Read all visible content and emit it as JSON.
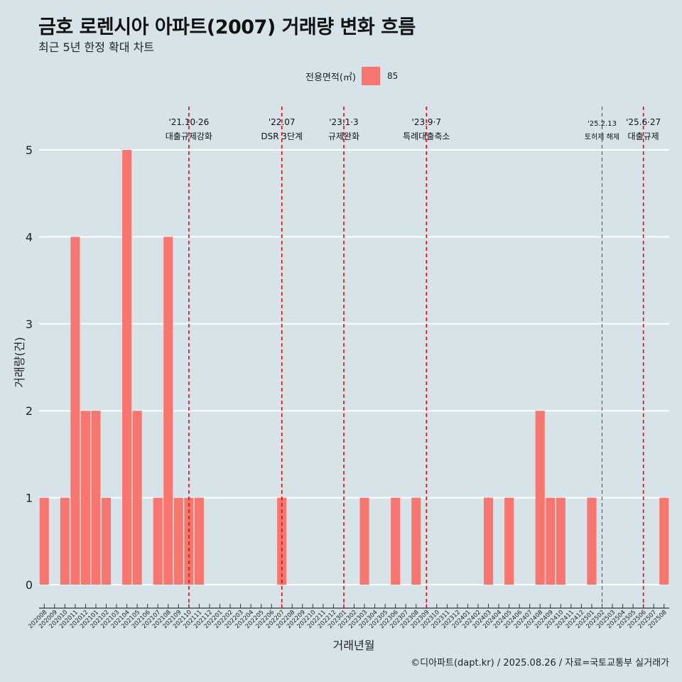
{
  "title": "금호 로렌시아 아파트(2007) 거래량 변화 흐름",
  "subtitle": "최근 5년 한정 확대 차트",
  "legend": {
    "title": "전용면적(㎡)",
    "item": "85",
    "color": "#f8766d"
  },
  "caption": "©디아파트(dapt.kr) / 2025.08.26 / 자료=국토교통부 실거래가",
  "chart_data": {
    "type": "bar",
    "xlabel": "거래년월",
    "ylabel": "거래량(건)",
    "ylim": [
      0,
      5
    ],
    "yticks": [
      0,
      1,
      2,
      3,
      4,
      5
    ],
    "grid": true,
    "legend_position": "top",
    "series": [
      {
        "name": "85",
        "color": "#f8766d",
        "values": [
          1,
          0,
          1,
          4,
          2,
          2,
          1,
          0,
          5,
          2,
          0,
          1,
          4,
          1,
          1,
          1,
          0,
          0,
          0,
          0,
          0,
          0,
          0,
          1,
          0,
          0,
          0,
          0,
          0,
          0,
          0,
          1,
          0,
          0,
          1,
          0,
          1,
          0,
          0,
          0,
          0,
          0,
          0,
          1,
          0,
          1,
          0,
          0,
          2,
          1,
          1,
          0,
          0,
          1,
          0,
          0,
          0,
          0,
          0,
          0,
          1
        ]
      }
    ],
    "categories": [
      "202008",
      "202009",
      "202010",
      "202011",
      "202012",
      "202101",
      "202102",
      "202103",
      "202104",
      "202105",
      "202106",
      "202107",
      "202108",
      "202109",
      "202110",
      "202111",
      "202112",
      "202201",
      "202202",
      "202203",
      "202204",
      "202205",
      "202206",
      "202207",
      "202208",
      "202209",
      "202210",
      "202211",
      "202212",
      "202301",
      "202302",
      "202303",
      "202304",
      "202305",
      "202306",
      "202307",
      "202308",
      "202309",
      "202310",
      "202311",
      "202312",
      "202401",
      "202402",
      "202403",
      "202404",
      "202405",
      "202406",
      "202407",
      "202408",
      "202409",
      "202410",
      "202411",
      "202412",
      "202501",
      "202502",
      "202503",
      "202504",
      "202505",
      "202506",
      "202507",
      "202508"
    ],
    "annotations": [
      {
        "at": "202110",
        "date": "'21.10·26",
        "label": "대출규제강화",
        "small": false
      },
      {
        "at": "202207",
        "date": "'22.07",
        "label": "DSR 3단계",
        "small": false
      },
      {
        "at": "202301",
        "date": "'23.1·3",
        "label": "규제완화",
        "small": false
      },
      {
        "at": "202309",
        "date": "'23.9·7",
        "label": "특례대출축소",
        "small": false
      },
      {
        "at": "202502",
        "date": "'25.2.13",
        "label": "토허제 해제",
        "small": true
      },
      {
        "at": "202506",
        "date": "'25.6·27",
        "label": "대출규제",
        "small": false
      }
    ]
  }
}
